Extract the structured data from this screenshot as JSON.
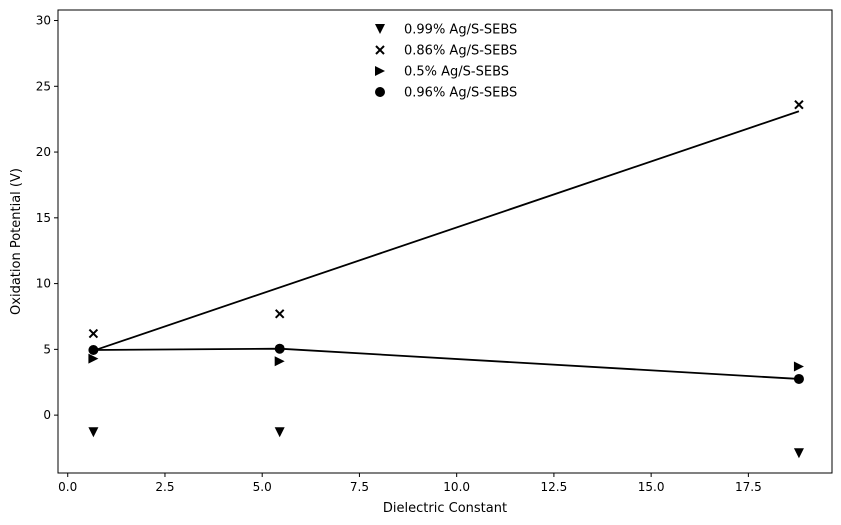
{
  "chart_data": {
    "type": "scatter",
    "title": "",
    "xlabel": "Dielectric Constant",
    "ylabel": "Oxidation Potential (V)",
    "xlim": [
      -0.25,
      19.65
    ],
    "ylim": [
      -4.4,
      30.8
    ],
    "xticks": [
      0.0,
      2.5,
      5.0,
      7.5,
      10.0,
      12.5,
      15.0,
      17.5
    ],
    "xtick_labels": [
      "0.0",
      "2.5",
      "5.0",
      "7.5",
      "10.0",
      "12.5",
      "15.0",
      "17.5"
    ],
    "yticks": [
      0,
      5,
      10,
      15,
      20,
      25,
      30
    ],
    "ytick_labels": [
      "0",
      "5",
      "10",
      "15",
      "20",
      "25",
      "30"
    ],
    "grid": false,
    "legend_position": "top-center",
    "x": [
      0.66,
      5.45,
      18.8
    ],
    "series": [
      {
        "name": "0.99% Ag/S-SEBS",
        "marker": "triangle-down",
        "values": [
          -1.3,
          -1.3,
          -2.9
        ]
      },
      {
        "name": "0.86% Ag/S-SEBS",
        "marker": "x",
        "values": [
          6.2,
          7.7,
          23.6
        ]
      },
      {
        "name": "0.5% Ag/S-SEBS",
        "marker": "triangle-right",
        "values": [
          4.3,
          4.1,
          3.7
        ]
      },
      {
        "name": "0.96% Ag/S-SEBS",
        "marker": "circle",
        "values": [
          4.95,
          5.05,
          2.75
        ]
      }
    ],
    "lines": [
      {
        "x": [
          0.66,
          18.8
        ],
        "y": [
          4.9,
          23.1
        ]
      },
      {
        "x": [
          0.66,
          5.45,
          18.8
        ],
        "y": [
          4.95,
          5.05,
          2.75
        ]
      }
    ],
    "marker_color": "#000000",
    "line_color": "#000000"
  }
}
